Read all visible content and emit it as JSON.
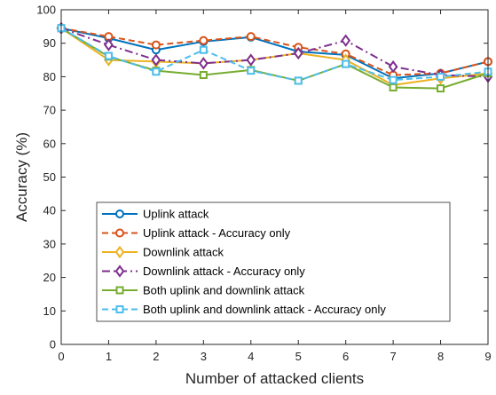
{
  "chart_data": {
    "type": "line",
    "title": "",
    "xlabel": "Number of attacked clients",
    "ylabel": "Accuracy (%)",
    "xlim": [
      0,
      9
    ],
    "ylim": [
      0,
      100
    ],
    "x": [
      0,
      1,
      2,
      3,
      4,
      5,
      6,
      7,
      8,
      9
    ],
    "xticks": [
      "0",
      "1",
      "2",
      "3",
      "4",
      "5",
      "6",
      "7",
      "8",
      "9"
    ],
    "yticks": [
      "0",
      "10",
      "20",
      "30",
      "40",
      "50",
      "60",
      "70",
      "80",
      "90",
      "100"
    ],
    "grid": false,
    "legend_position": "lower-left",
    "series": [
      {
        "name": "Uplink attack",
        "color": "#0072BD",
        "marker": "circle",
        "dash": "solid",
        "values": [
          94.5,
          91.5,
          88.0,
          90.5,
          91.8,
          87.5,
          86.5,
          79.5,
          81.0,
          84.5
        ]
      },
      {
        "name": "Uplink attack - Accuracy only",
        "color": "#D95319",
        "marker": "circle",
        "dash": "dashed",
        "values": [
          94.5,
          92.0,
          89.5,
          90.8,
          92.0,
          88.8,
          86.8,
          80.5,
          81.0,
          84.5
        ]
      },
      {
        "name": "Downlink attack",
        "color": "#EDB120",
        "marker": "diamond",
        "dash": "solid",
        "values": [
          94.5,
          85.0,
          84.5,
          84.0,
          85.0,
          87.0,
          85.0,
          77.5,
          79.5,
          81.0
        ]
      },
      {
        "name": "Downlink attack - Accuracy only",
        "color": "#7E2F8E",
        "marker": "diamond",
        "dash": "dashdot",
        "values": [
          94.5,
          89.5,
          85.0,
          84.0,
          85.0,
          87.0,
          90.8,
          83.0,
          80.5,
          80.0
        ]
      },
      {
        "name": "Both uplink and downlink attack",
        "color": "#77AC30",
        "marker": "square",
        "dash": "solid",
        "values": [
          94.5,
          86.0,
          81.8,
          80.5,
          82.0,
          78.8,
          83.8,
          76.8,
          76.5,
          81.0
        ]
      },
      {
        "name": "Both uplink and downlink attack - Accuracy only",
        "color": "#4DBEEE",
        "marker": "square",
        "dash": "dashed",
        "values": [
          94.5,
          86.2,
          81.5,
          88.0,
          81.8,
          78.8,
          83.8,
          79.0,
          80.0,
          81.5
        ]
      }
    ]
  }
}
